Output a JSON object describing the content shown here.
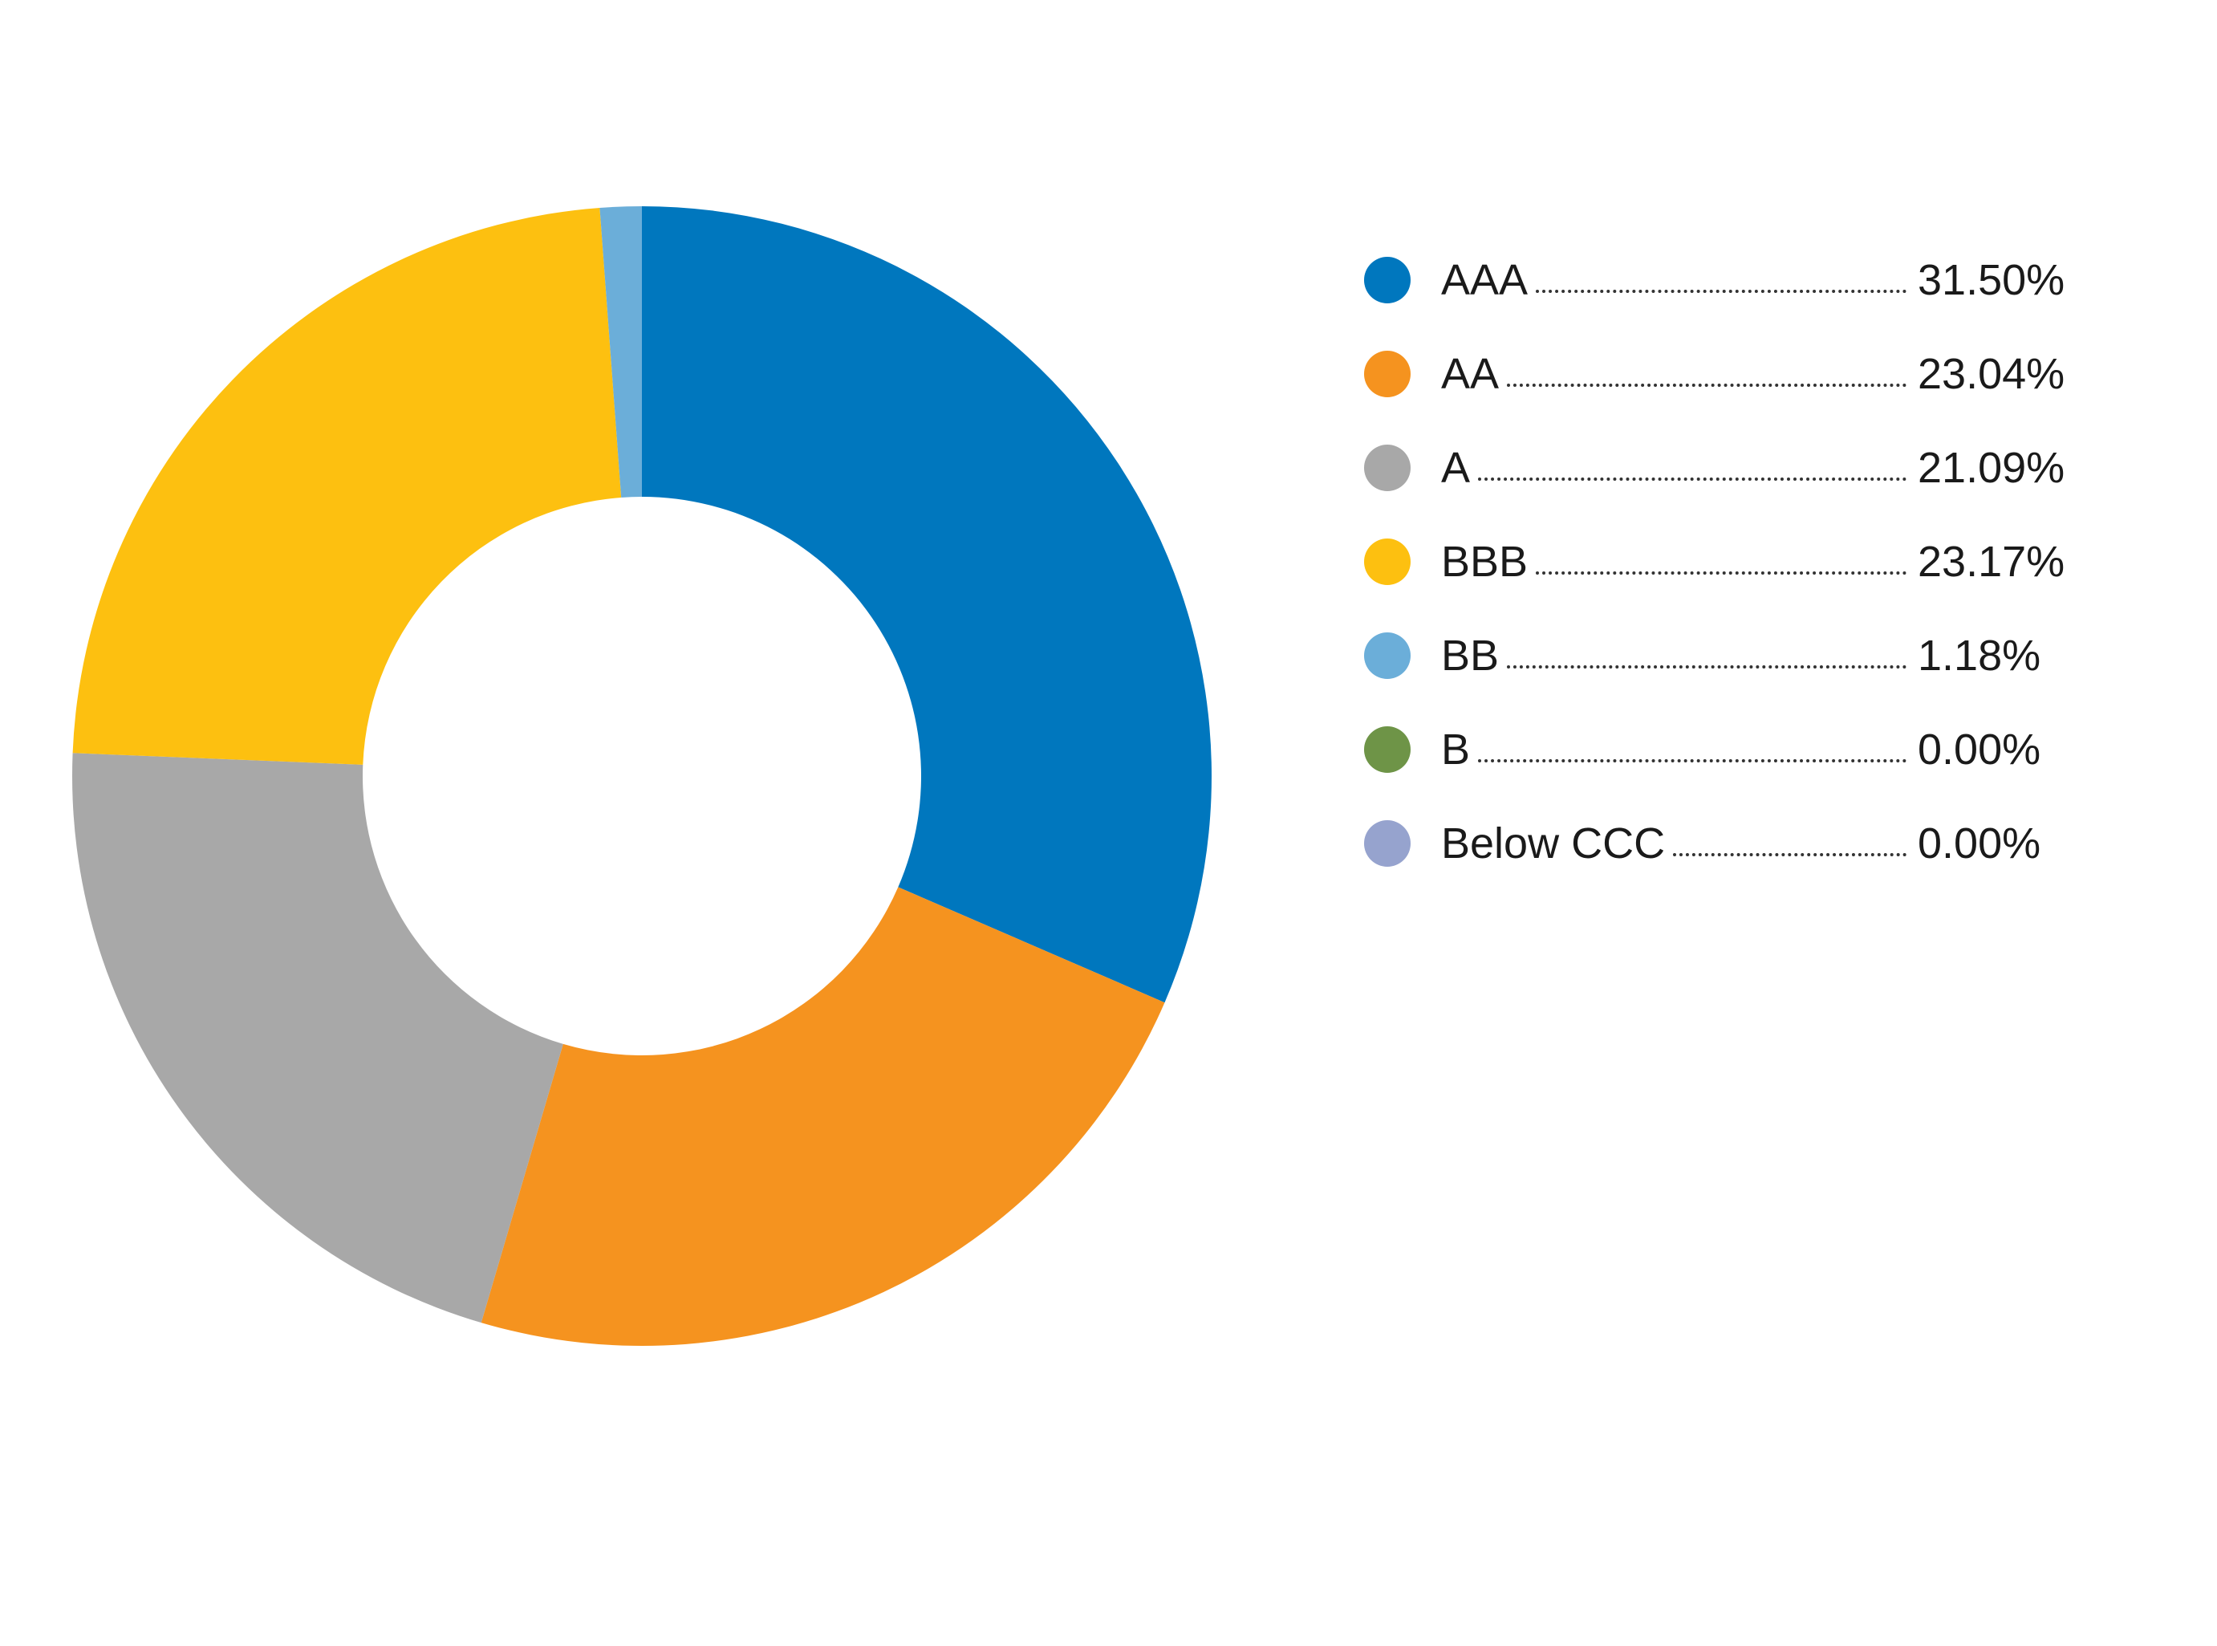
{
  "chart_data": {
    "type": "pie",
    "variant": "donut",
    "title": "",
    "categories": [
      "AAA",
      "AA",
      "A",
      "BBB",
      "BB",
      "B",
      "Below CCC"
    ],
    "values": [
      31.5,
      23.04,
      21.09,
      23.17,
      1.18,
      0.0,
      0.0
    ],
    "value_labels": [
      "31.50%",
      "23.04%",
      "21.09%",
      "23.17%",
      "1.18%",
      "0.00%",
      "0.00%"
    ],
    "colors": [
      "#0077BE",
      "#F5931F",
      "#A8A8A8",
      "#FDC010",
      "#6BAED9",
      "#6E9447",
      "#96A3CE"
    ],
    "legend_position": "right"
  }
}
